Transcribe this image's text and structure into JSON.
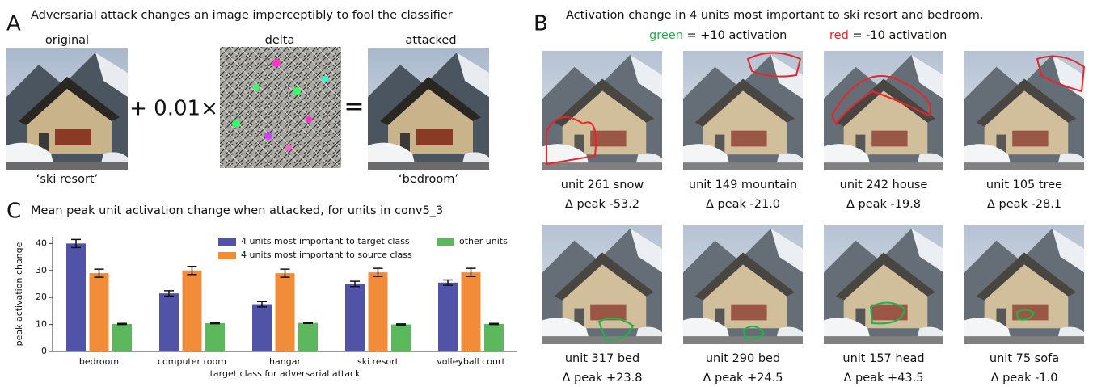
{
  "panel_a": {
    "letter": "A",
    "title": "Adversarial attack changes an image imperceptibly to fool the classifier",
    "labels": [
      "original",
      "delta",
      "attacked"
    ],
    "operator": "+ 0.01×",
    "equals": "=",
    "classes": [
      "‘ski resort’",
      "‘bedroom’"
    ]
  },
  "panel_b": {
    "letter": "B",
    "title": "Activation change in 4 units most important to ski resort and bedroom.",
    "legend": [
      {
        "word": "green",
        "text": "= +10 activation",
        "color": "#22b14c"
      },
      {
        "word": "red",
        "text": "= -10 activation",
        "color": "#e8242a"
      }
    ],
    "units": [
      {
        "name": "unit 261 snow",
        "change": "Δ peak -53.2"
      },
      {
        "name": "unit 149 mountain",
        "change": "Δ peak -21.0"
      },
      {
        "name": "unit 242 house",
        "change": "Δ peak -19.8"
      },
      {
        "name": "unit 105 tree",
        "change": "Δ peak -28.1"
      },
      {
        "name": "unit 317 bed",
        "change": "Δ peak +23.8"
      },
      {
        "name": "unit 290 bed",
        "change": "Δ peak +24.5"
      },
      {
        "name": "unit 157 head",
        "change": "Δ peak +43.5"
      },
      {
        "name": "unit 75 sofa",
        "change": "Δ peak -1.0"
      }
    ]
  },
  "panel_c": {
    "letter": "C"
  },
  "chart_data": {
    "type": "bar",
    "title": "Mean peak unit activation change when attacked, for units in conv5_3",
    "xlabel": "target class for adversarial attack",
    "ylabel": "peak activation change",
    "categories": [
      "bedroom",
      "computer room",
      "hangar",
      "ski resort",
      "volleyball court"
    ],
    "series": [
      {
        "name": "4 units most important to target class",
        "color": "#5053a6",
        "values": [
          40,
          21.5,
          17.5,
          25,
          25.5
        ],
        "errors": [
          1.5,
          1,
          1,
          1,
          1
        ]
      },
      {
        "name": "4 units most important to source class",
        "color": "#f28c38",
        "values": [
          29,
          30,
          29,
          29.3,
          29.3
        ],
        "errors": [
          1.5,
          1.5,
          1.5,
          1.5,
          1.5
        ]
      },
      {
        "name": "other units",
        "color": "#5cb85c",
        "values": [
          10.2,
          10.5,
          10.6,
          10,
          10.2
        ],
        "errors": [
          0.2,
          0.2,
          0.2,
          0.2,
          0.2
        ]
      }
    ],
    "ylim": [
      0,
      42.5
    ],
    "yticks": [
      0,
      10,
      20,
      30,
      40
    ],
    "legend": "upper right"
  }
}
